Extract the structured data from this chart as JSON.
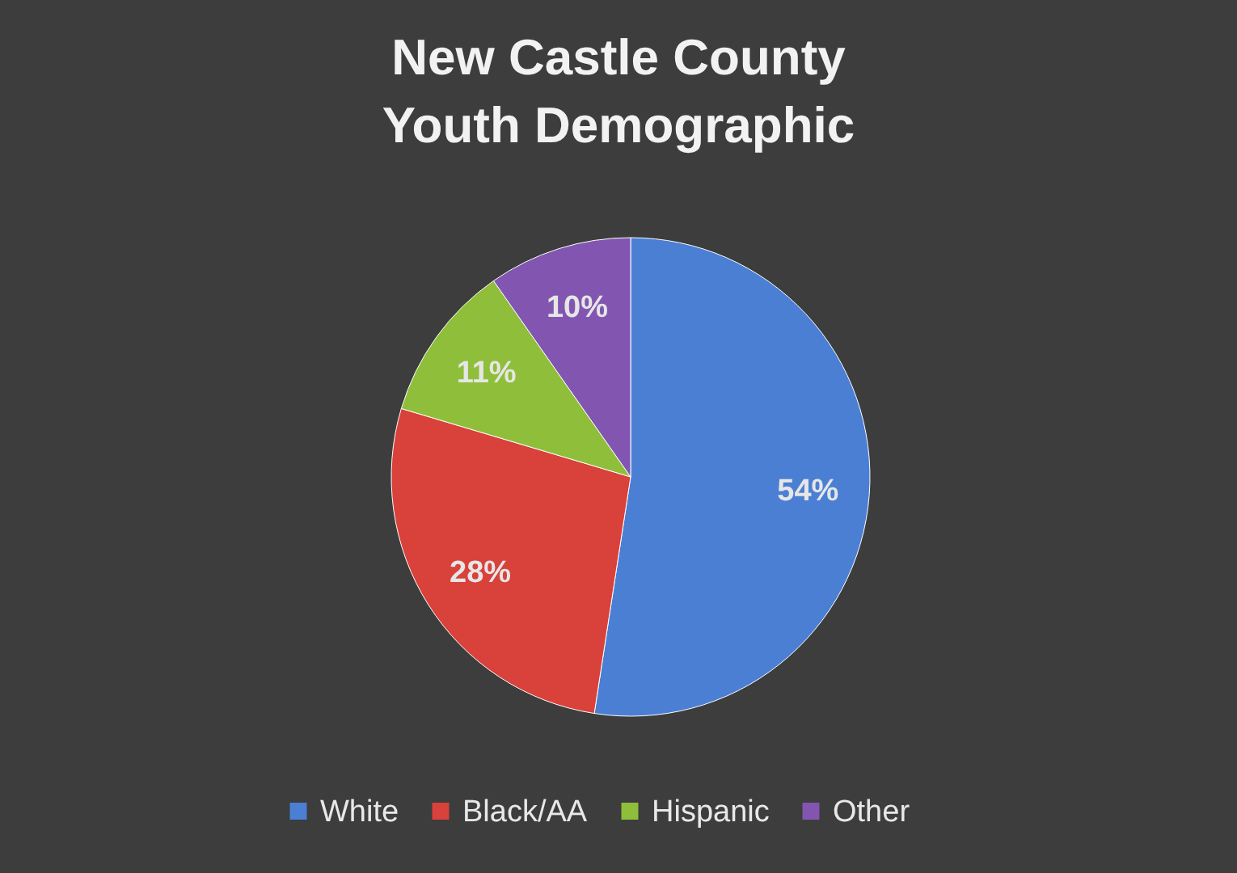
{
  "chart_data": {
    "type": "pie",
    "title": "New Castle County Youth Demographic",
    "categories": [
      "White",
      "Black/AA",
      "Hispanic",
      "Other"
    ],
    "values": [
      54,
      28,
      11,
      10
    ],
    "value_labels": [
      "54%",
      "28%",
      "11%",
      "10%"
    ],
    "colors": [
      "#4a7fd4",
      "#d9413b",
      "#8fbf3a",
      "#8256b0"
    ],
    "legend": "bottom"
  }
}
